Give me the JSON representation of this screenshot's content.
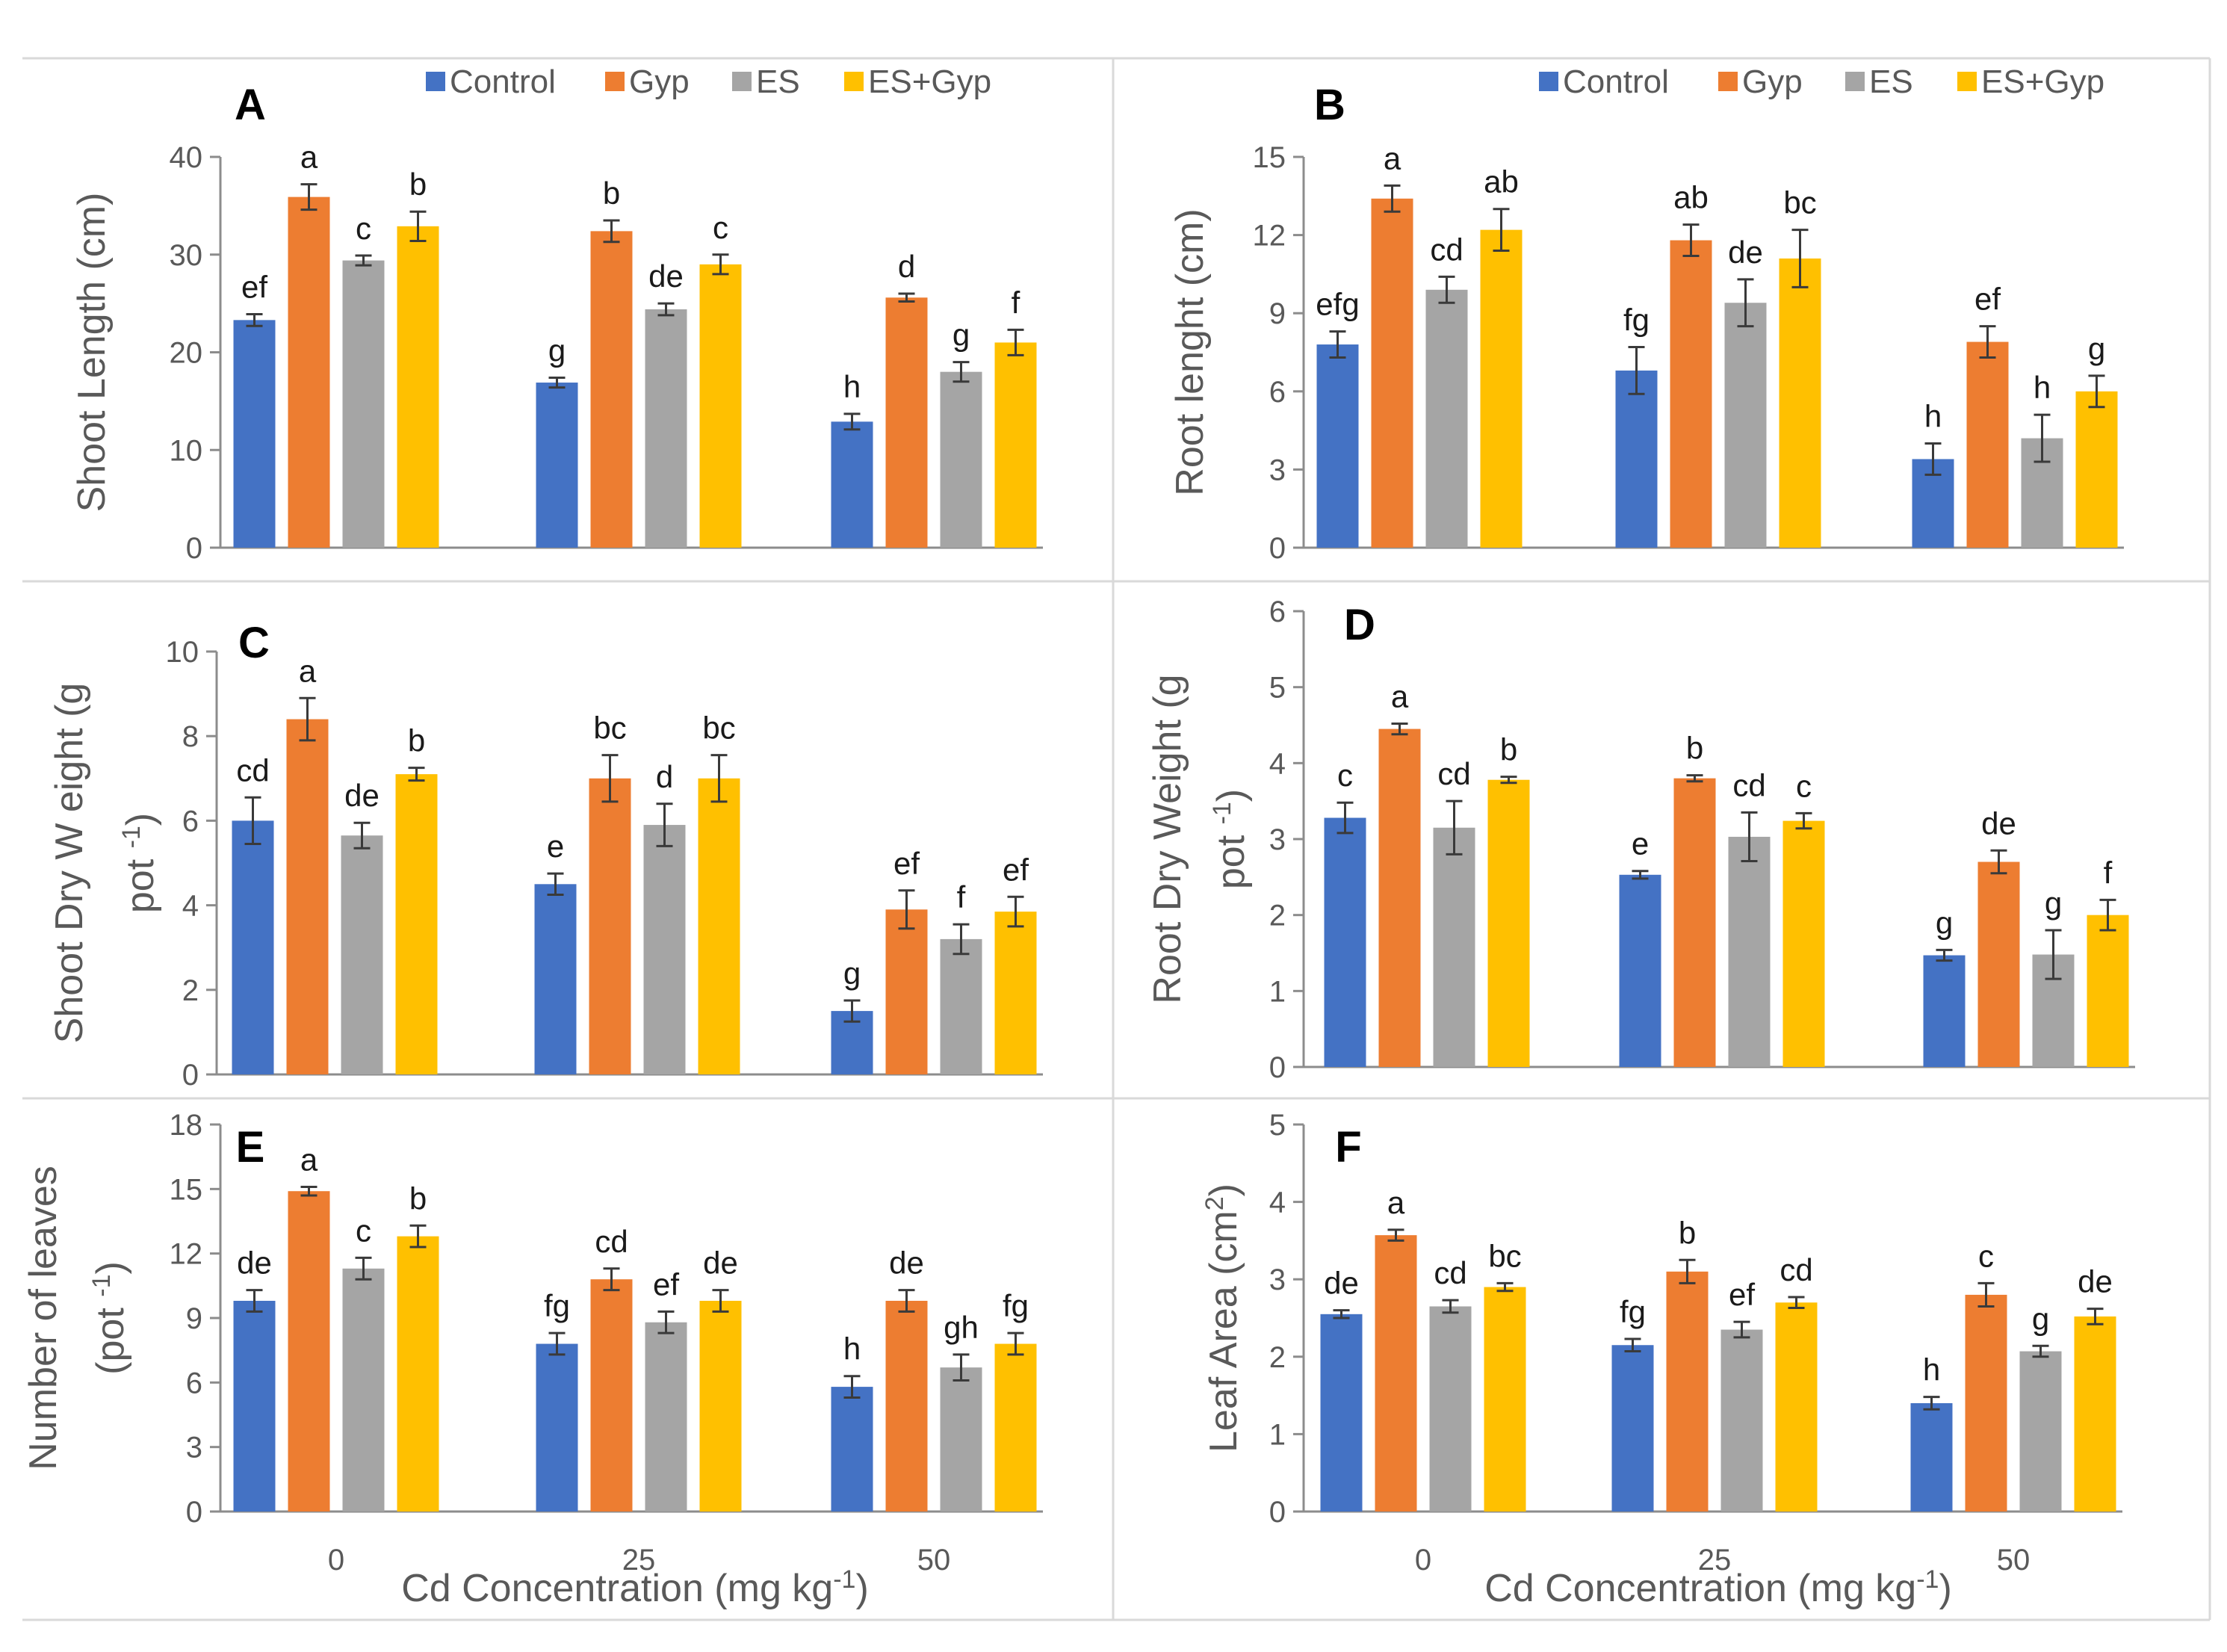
{
  "legend": {
    "series": [
      {
        "name": "Control",
        "color": "#4472c4"
      },
      {
        "name": "Gyp",
        "color": "#ed7d31"
      },
      {
        "name": "ES",
        "color": "#a5a5a5"
      },
      {
        "name": "ES+Gyp",
        "color": "#ffc000"
      }
    ]
  },
  "x_axis_title": {
    "pre": "Cd Concentration (mg kg",
    "sup": "-1",
    "post": ")"
  },
  "chart_data": [
    {
      "type": "bar",
      "panel": "A",
      "ylabel": "Shoot Length (cm)",
      "ylim": [
        0,
        40
      ],
      "yticks": [
        "0",
        "10",
        "20",
        "30",
        "40"
      ],
      "categories": [
        "0",
        "25",
        "50"
      ],
      "show_x_ticks": false,
      "series": [
        {
          "name": "Control",
          "values": [
            23.3,
            16.9,
            12.9
          ],
          "errors": [
            0.6,
            0.5,
            0.8
          ],
          "letters": [
            "ef",
            "g",
            "h"
          ]
        },
        {
          "name": "Gyp",
          "values": [
            35.9,
            32.4,
            25.6
          ],
          "errors": [
            1.3,
            1.1,
            0.4
          ],
          "letters": [
            "a",
            "b",
            "d"
          ]
        },
        {
          "name": "ES",
          "values": [
            29.4,
            24.4,
            18.0
          ],
          "errors": [
            0.5,
            0.6,
            1.0
          ],
          "letters": [
            "c",
            "de",
            "g"
          ]
        },
        {
          "name": "ES+Gyp",
          "values": [
            32.9,
            29.0,
            21.0
          ],
          "errors": [
            1.5,
            1.0,
            1.3
          ],
          "letters": [
            "b",
            "c",
            "f"
          ]
        }
      ]
    },
    {
      "type": "bar",
      "panel": "B",
      "ylabel": "Root lenght (cm)",
      "ylim": [
        0,
        15
      ],
      "yticks": [
        "0",
        "3",
        "6",
        "9",
        "12",
        "15"
      ],
      "categories": [
        "0",
        "25",
        "50"
      ],
      "show_x_ticks": false,
      "series": [
        {
          "name": "Control",
          "values": [
            7.8,
            6.8,
            3.4
          ],
          "errors": [
            0.5,
            0.9,
            0.6
          ],
          "letters": [
            "efg",
            "fg",
            "h"
          ]
        },
        {
          "name": "Gyp",
          "values": [
            13.4,
            11.8,
            7.9
          ],
          "errors": [
            0.5,
            0.6,
            0.6
          ],
          "letters": [
            "a",
            "ab",
            "ef"
          ]
        },
        {
          "name": "ES",
          "values": [
            9.9,
            9.4,
            4.2
          ],
          "errors": [
            0.5,
            0.9,
            0.9
          ],
          "letters": [
            "cd",
            "de",
            "h"
          ]
        },
        {
          "name": "ES+Gyp",
          "values": [
            12.2,
            11.1,
            6.0
          ],
          "errors": [
            0.8,
            1.1,
            0.6
          ],
          "letters": [
            "ab",
            "bc",
            "g"
          ]
        }
      ]
    },
    {
      "type": "bar",
      "panel": "C",
      "ylabel_pre": "Shoot Dry W eight (g",
      "ylabel_line2": "pot",
      "ylabel_sup": "-1",
      "ylabel_post": ")",
      "ylim": [
        0,
        10
      ],
      "yticks": [
        "0",
        "2",
        "4",
        "6",
        "8",
        "10"
      ],
      "categories": [
        "0",
        "25",
        "50"
      ],
      "show_x_ticks": false,
      "series": [
        {
          "name": "Control",
          "values": [
            6.0,
            4.5,
            1.5
          ],
          "errors": [
            0.55,
            0.25,
            0.25
          ],
          "letters": [
            "cd",
            "e",
            "g"
          ]
        },
        {
          "name": "Gyp",
          "values": [
            8.4,
            7.0,
            3.9
          ],
          "errors": [
            0.5,
            0.55,
            0.45
          ],
          "letters": [
            "a",
            "bc",
            "ef"
          ]
        },
        {
          "name": "ES",
          "values": [
            5.65,
            5.9,
            3.2
          ],
          "errors": [
            0.3,
            0.5,
            0.35
          ],
          "letters": [
            "de",
            "d",
            "f"
          ]
        },
        {
          "name": "ES+Gyp",
          "values": [
            7.1,
            7.0,
            3.85
          ],
          "errors": [
            0.15,
            0.55,
            0.35
          ],
          "letters": [
            "b",
            "bc",
            "ef"
          ]
        }
      ]
    },
    {
      "type": "bar",
      "panel": "D",
      "ylabel_pre": "Root Dry Weight (g",
      "ylabel_line2": "pot",
      "ylabel_sup": "-1",
      "ylabel_post": ")",
      "ylim": [
        0,
        6
      ],
      "yticks": [
        "0",
        "1",
        "2",
        "3",
        "4",
        "5",
        "6"
      ],
      "categories": [
        "0",
        "25",
        "50"
      ],
      "show_x_ticks": false,
      "series": [
        {
          "name": "Control",
          "values": [
            3.28,
            2.53,
            1.47
          ],
          "errors": [
            0.2,
            0.05,
            0.07
          ],
          "letters": [
            "c",
            "e",
            "g"
          ]
        },
        {
          "name": "Gyp",
          "values": [
            4.45,
            3.8,
            2.7
          ],
          "errors": [
            0.07,
            0.04,
            0.15
          ],
          "letters": [
            "a",
            "b",
            "de"
          ]
        },
        {
          "name": "ES",
          "values": [
            3.15,
            3.03,
            1.48
          ],
          "errors": [
            0.35,
            0.32,
            0.32
          ],
          "letters": [
            "cd",
            "cd",
            "g"
          ]
        },
        {
          "name": "ES+Gyp",
          "values": [
            3.78,
            3.24,
            2.0
          ],
          "errors": [
            0.04,
            0.1,
            0.2
          ],
          "letters": [
            "b",
            "c",
            "f"
          ]
        }
      ]
    },
    {
      "type": "bar",
      "panel": "E",
      "ylabel": "Number of leaves",
      "ylabel_line2": "(pot",
      "ylabel_sup": "-1",
      "ylabel_post": ")",
      "ylim": [
        0,
        18
      ],
      "yticks": [
        "0",
        "3",
        "6",
        "9",
        "12",
        "15",
        "18"
      ],
      "categories": [
        "0",
        "25",
        "50"
      ],
      "show_x_ticks": true,
      "series": [
        {
          "name": "Control",
          "values": [
            9.8,
            7.8,
            5.8
          ],
          "errors": [
            0.5,
            0.5,
            0.5
          ],
          "letters": [
            "de",
            "fg",
            "h"
          ]
        },
        {
          "name": "Gyp",
          "values": [
            14.9,
            10.8,
            9.8
          ],
          "errors": [
            0.2,
            0.5,
            0.5
          ],
          "letters": [
            "a",
            "cd",
            "de"
          ]
        },
        {
          "name": "ES",
          "values": [
            11.3,
            8.8,
            6.7
          ],
          "errors": [
            0.5,
            0.5,
            0.6
          ],
          "letters": [
            "c",
            "ef",
            "gh"
          ]
        },
        {
          "name": "ES+Gyp",
          "values": [
            12.8,
            9.8,
            7.8
          ],
          "errors": [
            0.5,
            0.5,
            0.5
          ],
          "letters": [
            "b",
            "de",
            "fg"
          ]
        }
      ]
    },
    {
      "type": "bar",
      "panel": "F",
      "ylabel_pre": "Leaf Area (cm",
      "ylabel_sup": "2",
      "ylabel_post": ")",
      "ylim": [
        0,
        5
      ],
      "yticks": [
        "0",
        "1",
        "2",
        "3",
        "4",
        "5"
      ],
      "categories": [
        "0",
        "25",
        "50"
      ],
      "show_x_ticks": true,
      "series": [
        {
          "name": "Control",
          "values": [
            2.55,
            2.15,
            1.4
          ],
          "errors": [
            0.05,
            0.08,
            0.08
          ],
          "letters": [
            "de",
            "fg",
            "h"
          ]
        },
        {
          "name": "Gyp",
          "values": [
            3.57,
            3.1,
            2.8
          ],
          "errors": [
            0.07,
            0.15,
            0.15
          ],
          "letters": [
            "a",
            "b",
            "c"
          ]
        },
        {
          "name": "ES",
          "values": [
            2.65,
            2.35,
            2.07
          ],
          "errors": [
            0.08,
            0.1,
            0.07
          ],
          "letters": [
            "cd",
            "ef",
            "g"
          ]
        },
        {
          "name": "ES+Gyp",
          "values": [
            2.9,
            2.7,
            2.52
          ],
          "errors": [
            0.05,
            0.07,
            0.1
          ],
          "letters": [
            "bc",
            "cd",
            "de"
          ]
        }
      ]
    }
  ]
}
